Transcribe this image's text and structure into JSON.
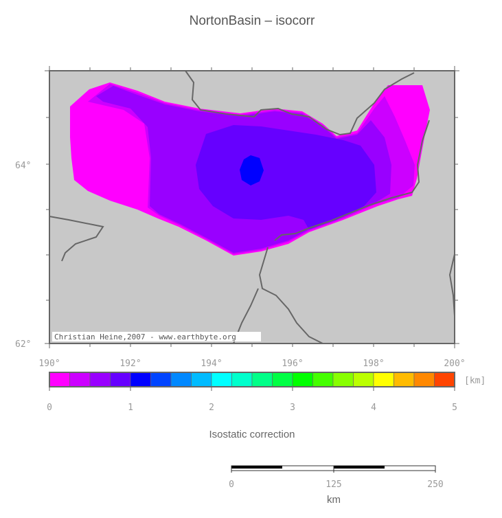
{
  "title": "NortonBasin – isocorr",
  "credit": "Christian Heine,2007 - www.earthbyte.org",
  "lon_ticks": [
    "190°",
    "192°",
    "194°",
    "196°",
    "198°",
    "200°"
  ],
  "lat_ticks": [
    "64°",
    "62°"
  ],
  "colorbar": {
    "unit": "[km]",
    "tick_labels": [
      "0",
      "1",
      "2",
      "3",
      "4",
      "5"
    ],
    "caption": "Isostatic correction",
    "colors": [
      "#ff00ff",
      "#cc00ff",
      "#9900ff",
      "#6600ff",
      "#0000ff",
      "#0044ff",
      "#0088ff",
      "#00bbff",
      "#00ffff",
      "#00ffcc",
      "#00ff88",
      "#00ff44",
      "#00ff00",
      "#44ff00",
      "#88ff00",
      "#bbff00",
      "#ffff00",
      "#ffbb00",
      "#ff8800",
      "#ff4400"
    ]
  },
  "scalebar": {
    "tick_labels": [
      "0",
      "125",
      "250"
    ],
    "unit": "km"
  },
  "colors": {
    "background": "#c8c8c8",
    "coast": "#666666",
    "frame": "#666666"
  }
}
